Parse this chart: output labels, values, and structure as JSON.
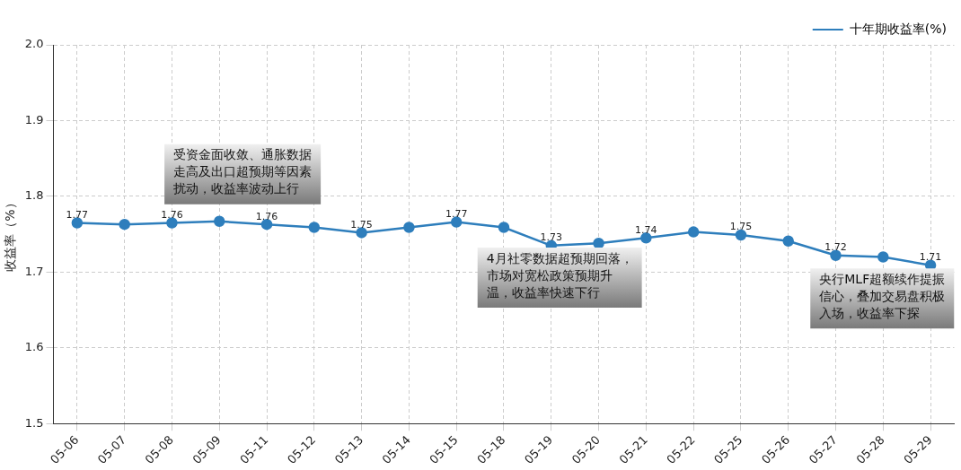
{
  "chart_data": {
    "type": "line",
    "ylabel": "收益率（%）",
    "categories": [
      "05-06",
      "05-07",
      "05-08",
      "05-09",
      "05-11",
      "05-12",
      "05-13",
      "05-14",
      "05-15",
      "05-18",
      "05-19",
      "05-20",
      "05-21",
      "05-22",
      "05-25",
      "05-26",
      "05-27",
      "05-28",
      "05-29"
    ],
    "series": [
      {
        "name": "十年期收益率(%)",
        "color": "#2e7ebc",
        "values": [
          1.765,
          1.763,
          1.765,
          1.767,
          1.763,
          1.759,
          1.752,
          1.759,
          1.766,
          1.759,
          1.735,
          1.738,
          1.745,
          1.753,
          1.749,
          1.741,
          1.722,
          1.72,
          1.709
        ],
        "value_labels": [
          "1.77",
          null,
          "1.76",
          null,
          "1.76",
          null,
          "1.75",
          null,
          "1.77",
          null,
          "1.73",
          null,
          "1.74",
          null,
          "1.75",
          null,
          "1.72",
          null,
          "1.71"
        ]
      }
    ],
    "ylim": [
      1.5,
      2.0
    ],
    "yticks": [
      1.5,
      1.6,
      1.7,
      1.8,
      1.9,
      {
        "value": 2.0,
        "label": "2.0"
      }
    ],
    "grid": true,
    "legend": "top right",
    "marker": "circle",
    "line_style": "solid",
    "annotations": [
      "受资金面收敛、通胀数据走高及出口超预期等因素扰动，收益率波动上行",
      "4月社零数据超预期回落，市场对宽松政策预期升温，收益率快速下行",
      "央行MLF超额续作提振信心，叠加交易盘积极入场，收益率下探"
    ]
  }
}
